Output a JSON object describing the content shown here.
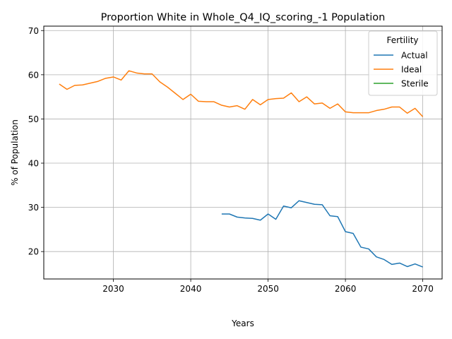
{
  "chart_data": {
    "type": "line",
    "title": "Proportion White in Whole_Q4_IQ_scoring_-1 Population",
    "xlabel": "Years",
    "ylabel": "% of Population",
    "xlim": [
      2021,
      2072.5
    ],
    "ylim": [
      13.8,
      71
    ],
    "xticks": [
      2030,
      2040,
      2050,
      2060,
      2070
    ],
    "yticks": [
      20,
      30,
      40,
      50,
      60,
      70
    ],
    "grid": true,
    "legend": {
      "title": "Fertility",
      "placement": "top-right"
    },
    "series": [
      {
        "name": "Actual",
        "color": "#1f77b4",
        "x": [
          2044,
          2045,
          2046,
          2047,
          2048,
          2049,
          2050,
          2051,
          2052,
          2053,
          2054,
          2055,
          2056,
          2057,
          2058,
          2059,
          2060,
          2061,
          2062,
          2063,
          2064,
          2065,
          2066,
          2067,
          2068,
          2069,
          2070
        ],
        "y": [
          28.5,
          28.5,
          27.8,
          27.6,
          27.5,
          27.1,
          28.5,
          27.3,
          30.3,
          29.9,
          31.5,
          31.1,
          30.7,
          30.6,
          28.1,
          27.9,
          24.5,
          24.1,
          21.0,
          20.6,
          18.8,
          18.2,
          17.1,
          17.4,
          16.6,
          17.2,
          16.5
        ]
      },
      {
        "name": "Ideal",
        "color": "#ff7f0e",
        "x": [
          2023,
          2024,
          2025,
          2026,
          2027,
          2028,
          2029,
          2030,
          2031,
          2032,
          2033,
          2034,
          2035,
          2036,
          2037,
          2038,
          2039,
          2040,
          2041,
          2042,
          2043,
          2044,
          2045,
          2046,
          2047,
          2048,
          2049,
          2050,
          2051,
          2052,
          2053,
          2054,
          2055,
          2056,
          2057,
          2058,
          2059,
          2060,
          2061,
          2062,
          2063,
          2064,
          2065,
          2066,
          2067,
          2068,
          2069,
          2070
        ],
        "y": [
          57.9,
          56.7,
          57.6,
          57.7,
          58.1,
          58.5,
          59.2,
          59.5,
          58.8,
          60.9,
          60.4,
          60.2,
          60.2,
          58.4,
          57.2,
          55.8,
          54.4,
          55.6,
          54.0,
          53.9,
          53.9,
          53.1,
          52.7,
          53.0,
          52.2,
          54.4,
          53.2,
          54.4,
          54.6,
          54.7,
          55.9,
          53.9,
          55.0,
          53.4,
          53.6,
          52.4,
          53.4,
          51.6,
          51.4,
          51.4,
          51.4,
          51.9,
          52.2,
          52.7,
          52.7,
          51.3,
          52.4,
          50.5
        ]
      },
      {
        "name": "Sterile",
        "color": "#2ca02c",
        "x": [],
        "y": []
      }
    ]
  }
}
